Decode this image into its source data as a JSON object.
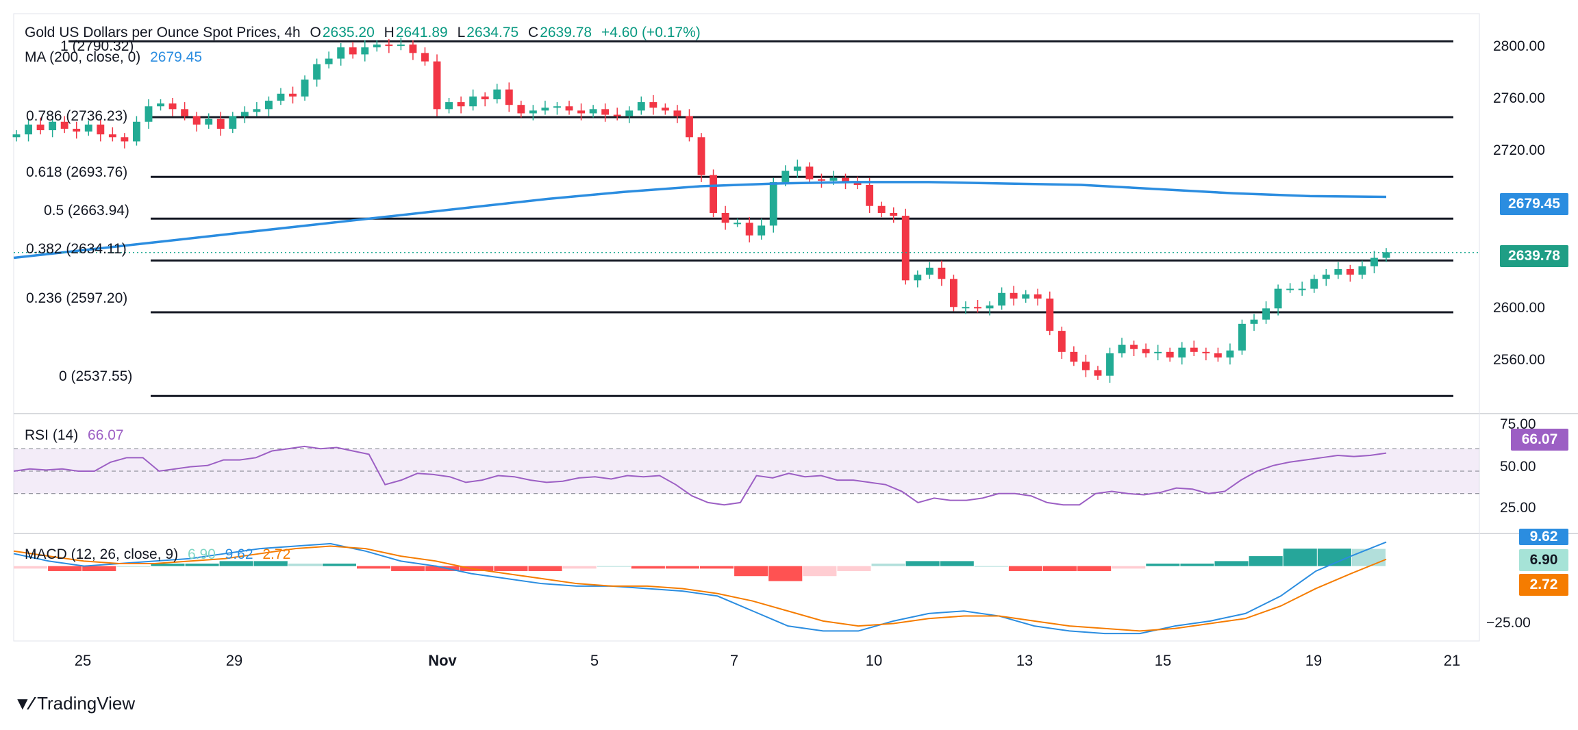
{
  "header": {
    "symbol": "Gold US Dollars per Ounce Spot Prices, 4h",
    "o_key": "O",
    "o": "2635.20",
    "h_key": "H",
    "h": "2641.89",
    "l_key": "L",
    "l": "2634.75",
    "c_key": "C",
    "c": "2639.78",
    "change": "+4.60 (+0.17%)"
  },
  "ma_legend": {
    "label": "MA (200, close, 0)",
    "value": "2679.45"
  },
  "rsi_legend": {
    "label": "RSI (14)",
    "value": "66.07"
  },
  "macd_legend": {
    "label": "MACD (12, 26, close, 9)",
    "hist": "6.90",
    "macd": "9.62",
    "signal": "2.72"
  },
  "fib_levels": [
    {
      "label": "1 (2790.32)",
      "value": 2790.32
    },
    {
      "label": "0.786 (2736.23)",
      "value": 2736.23
    },
    {
      "label": "0.618 (2693.76)",
      "value": 2693.76
    },
    {
      "label": "0.5 (2663.94)",
      "value": 2663.94
    },
    {
      "label": "0.382 (2634.11)",
      "value": 2634.11
    },
    {
      "label": "0.236 (2597.20)",
      "value": 2597.2
    },
    {
      "label": "0 (2537.55)",
      "value": 2537.55
    }
  ],
  "price_axis": [
    "2800.00",
    "2760.00",
    "2720.00",
    "2600.00",
    "2560.00"
  ],
  "rsi_axis": [
    "75.00",
    "50.00",
    "25.00"
  ],
  "macd_axis": [
    "−25.00"
  ],
  "badges": {
    "ma": "2679.45",
    "price": "2639.78",
    "rsi": "66.07",
    "macd": "9.62",
    "hist": "6.90",
    "signal": "2.72"
  },
  "x_axis": [
    "25",
    "29",
    "Nov",
    "5",
    "7",
    "10",
    "13",
    "15",
    "19",
    "21"
  ],
  "brand": "TradingView",
  "colors": {
    "up": "#22ab94",
    "down": "#f23645",
    "ma": "#2b8de0",
    "rsi": "#9c5fc4",
    "macd": "#2b8de0",
    "signal": "#f57c00"
  },
  "chart_data": {
    "type": "candlestick",
    "interval": "4h",
    "price_ylim": [
      2525,
      2810
    ],
    "rsi_ylim": [
      0,
      100
    ],
    "macd_ylim": [
      -30,
      15
    ],
    "candles_close": [
      2724,
      2731,
      2727,
      2733,
      2728,
      2726,
      2731,
      2724,
      2722,
      2719,
      2733,
      2744,
      2746,
      2742,
      2737,
      2731,
      2735,
      2728,
      2737,
      2740,
      2742,
      2748,
      2753,
      2751,
      2763,
      2774,
      2778,
      2786,
      2781,
      2786,
      2788,
      2787,
      2788,
      2782,
      2776,
      2742,
      2747,
      2744,
      2751,
      2749,
      2756,
      2745,
      2739,
      2741,
      2743,
      2744,
      2741,
      2739,
      2742,
      2738,
      2737,
      2741,
      2747,
      2743,
      2741,
      2737,
      2722,
      2695,
      2668,
      2661,
      2661,
      2652,
      2659,
      2690,
      2698,
      2701,
      2692,
      2691,
      2693,
      2690,
      2688,
      2673,
      2668,
      2666,
      2620,
      2624,
      2629,
      2621,
      2601,
      2601,
      2600,
      2602,
      2611,
      2607,
      2610,
      2607,
      2584,
      2569,
      2562,
      2556,
      2552,
      2568,
      2574,
      2571,
      2568,
      2569,
      2565,
      2572,
      2569,
      2568,
      2565,
      2570,
      2589,
      2592,
      2600,
      2614,
      2614,
      2614,
      2621,
      2624,
      2628,
      2624,
      2630,
      2636,
      2640
    ],
    "ma200": [
      2636,
      2642,
      2648,
      2654,
      2660,
      2666,
      2672,
      2678,
      2683,
      2687,
      2689,
      2690,
      2690,
      2689,
      2688,
      2685,
      2682,
      2680,
      2679.45
    ],
    "rsi": [
      50,
      52,
      51,
      52,
      50,
      50,
      58,
      62,
      62,
      50,
      52,
      54,
      55,
      60,
      60,
      62,
      68,
      70,
      72,
      70,
      71,
      68,
      65,
      38,
      42,
      48,
      47,
      45,
      40,
      42,
      46,
      45,
      42,
      40,
      41,
      44,
      45,
      43,
      46,
      45,
      46,
      38,
      28,
      22,
      20,
      22,
      46,
      44,
      48,
      45,
      46,
      42,
      42,
      40,
      38,
      32,
      22,
      26,
      24,
      24,
      26,
      30,
      30,
      28,
      22,
      20,
      20,
      30,
      32,
      30,
      29,
      31,
      35,
      34,
      30,
      32,
      42,
      50,
      55,
      58,
      60,
      62,
      64,
      63,
      64,
      66.07
    ],
    "macd": [
      5,
      2,
      0,
      1,
      2,
      3,
      5,
      7,
      8,
      9,
      6,
      2,
      0,
      -3,
      -5,
      -7,
      -8,
      -8,
      -9,
      -10,
      -12,
      -18,
      -24,
      -26,
      -26,
      -22,
      -19,
      -18,
      -20,
      -24,
      -26,
      -27,
      -27,
      -24,
      -22,
      -19,
      -12,
      -2,
      4,
      9.62
    ],
    "signal": [
      6,
      4,
      2,
      1,
      1,
      2,
      3,
      5,
      7,
      8,
      7,
      4,
      2,
      -1,
      -3,
      -5,
      -7,
      -8,
      -8,
      -9,
      -11,
      -14,
      -18,
      -22,
      -24,
      -23,
      -21,
      -20,
      -20,
      -22,
      -24,
      -25,
      -26,
      -25,
      -23,
      -21,
      -16,
      -9,
      -3,
      2.72
    ],
    "histogram": [
      -1,
      -2,
      -2,
      0,
      1,
      1,
      2,
      2,
      1,
      1,
      -1,
      -2,
      -2,
      -2,
      -2,
      -2,
      -1,
      0,
      -1,
      -1,
      -1,
      -4,
      -6,
      -4,
      -2,
      1,
      2,
      2,
      0,
      -2,
      -2,
      -2,
      -1,
      1,
      1,
      2,
      4,
      7,
      7,
      6.9
    ]
  }
}
